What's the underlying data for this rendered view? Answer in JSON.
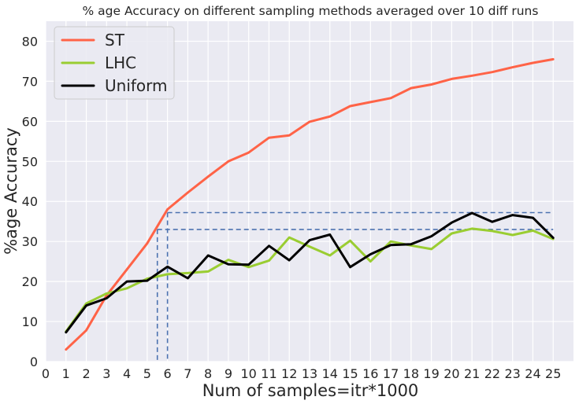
{
  "chart_data": {
    "type": "line",
    "title": "% age Accuracy on different sampling methods averaged over 10 diff runs",
    "xlabel": "Num of samples=itr*1000",
    "ylabel": "%age Accuracy",
    "xlim": [
      0,
      26
    ],
    "ylim": [
      0,
      85
    ],
    "xticks": [
      0,
      1,
      2,
      3,
      4,
      5,
      6,
      7,
      8,
      9,
      10,
      11,
      12,
      13,
      14,
      15,
      16,
      17,
      18,
      19,
      20,
      21,
      22,
      23,
      24,
      25
    ],
    "yticks": [
      0,
      10,
      20,
      30,
      40,
      50,
      60,
      70,
      80
    ],
    "grid": true,
    "legend_position": "top-left",
    "x": [
      1,
      2,
      3,
      4,
      5,
      6,
      7,
      8,
      9,
      10,
      11,
      12,
      13,
      14,
      15,
      16,
      17,
      18,
      19,
      20,
      21,
      22,
      23,
      24,
      25
    ],
    "series": [
      {
        "name": "ST",
        "color": "#ff6347",
        "values": [
          3.0,
          7.8,
          16.5,
          23.0,
          29.5,
          38.0,
          42.2,
          46.2,
          50.0,
          52.2,
          55.9,
          56.5,
          59.9,
          61.2,
          63.8,
          64.8,
          65.8,
          68.3,
          69.2,
          70.6,
          71.4,
          72.3,
          73.5,
          74.6,
          75.5
        ]
      },
      {
        "name": "LHC",
        "color": "#9acd32",
        "values": [
          7.5,
          14.5,
          17.0,
          18.3,
          20.7,
          21.8,
          22.1,
          22.5,
          25.4,
          23.6,
          25.2,
          31.0,
          28.7,
          26.5,
          30.2,
          25.0,
          30.0,
          29.0,
          28.1,
          32.0,
          33.2,
          32.6,
          31.6,
          32.7,
          30.6
        ]
      },
      {
        "name": "Uniform",
        "color": "#000000",
        "values": [
          7.3,
          14.0,
          15.8,
          20.0,
          20.2,
          23.7,
          20.8,
          26.5,
          24.3,
          24.2,
          28.9,
          25.3,
          30.3,
          31.7,
          23.6,
          26.8,
          29.1,
          29.3,
          31.3,
          34.7,
          37.1,
          34.9,
          36.6,
          35.9,
          30.9
        ]
      }
    ],
    "reference_lines": [
      {
        "color": "#4c72b0",
        "style": "dashed",
        "x": 6,
        "y": 37.2,
        "x_end": 25
      },
      {
        "color": "#4c72b0",
        "style": "dashed",
        "x": 5.5,
        "y": 33.0,
        "x_end": 25
      }
    ]
  },
  "colors": {
    "background": "#eaeaf2",
    "grid": "#ffffff",
    "text": "#262626"
  }
}
